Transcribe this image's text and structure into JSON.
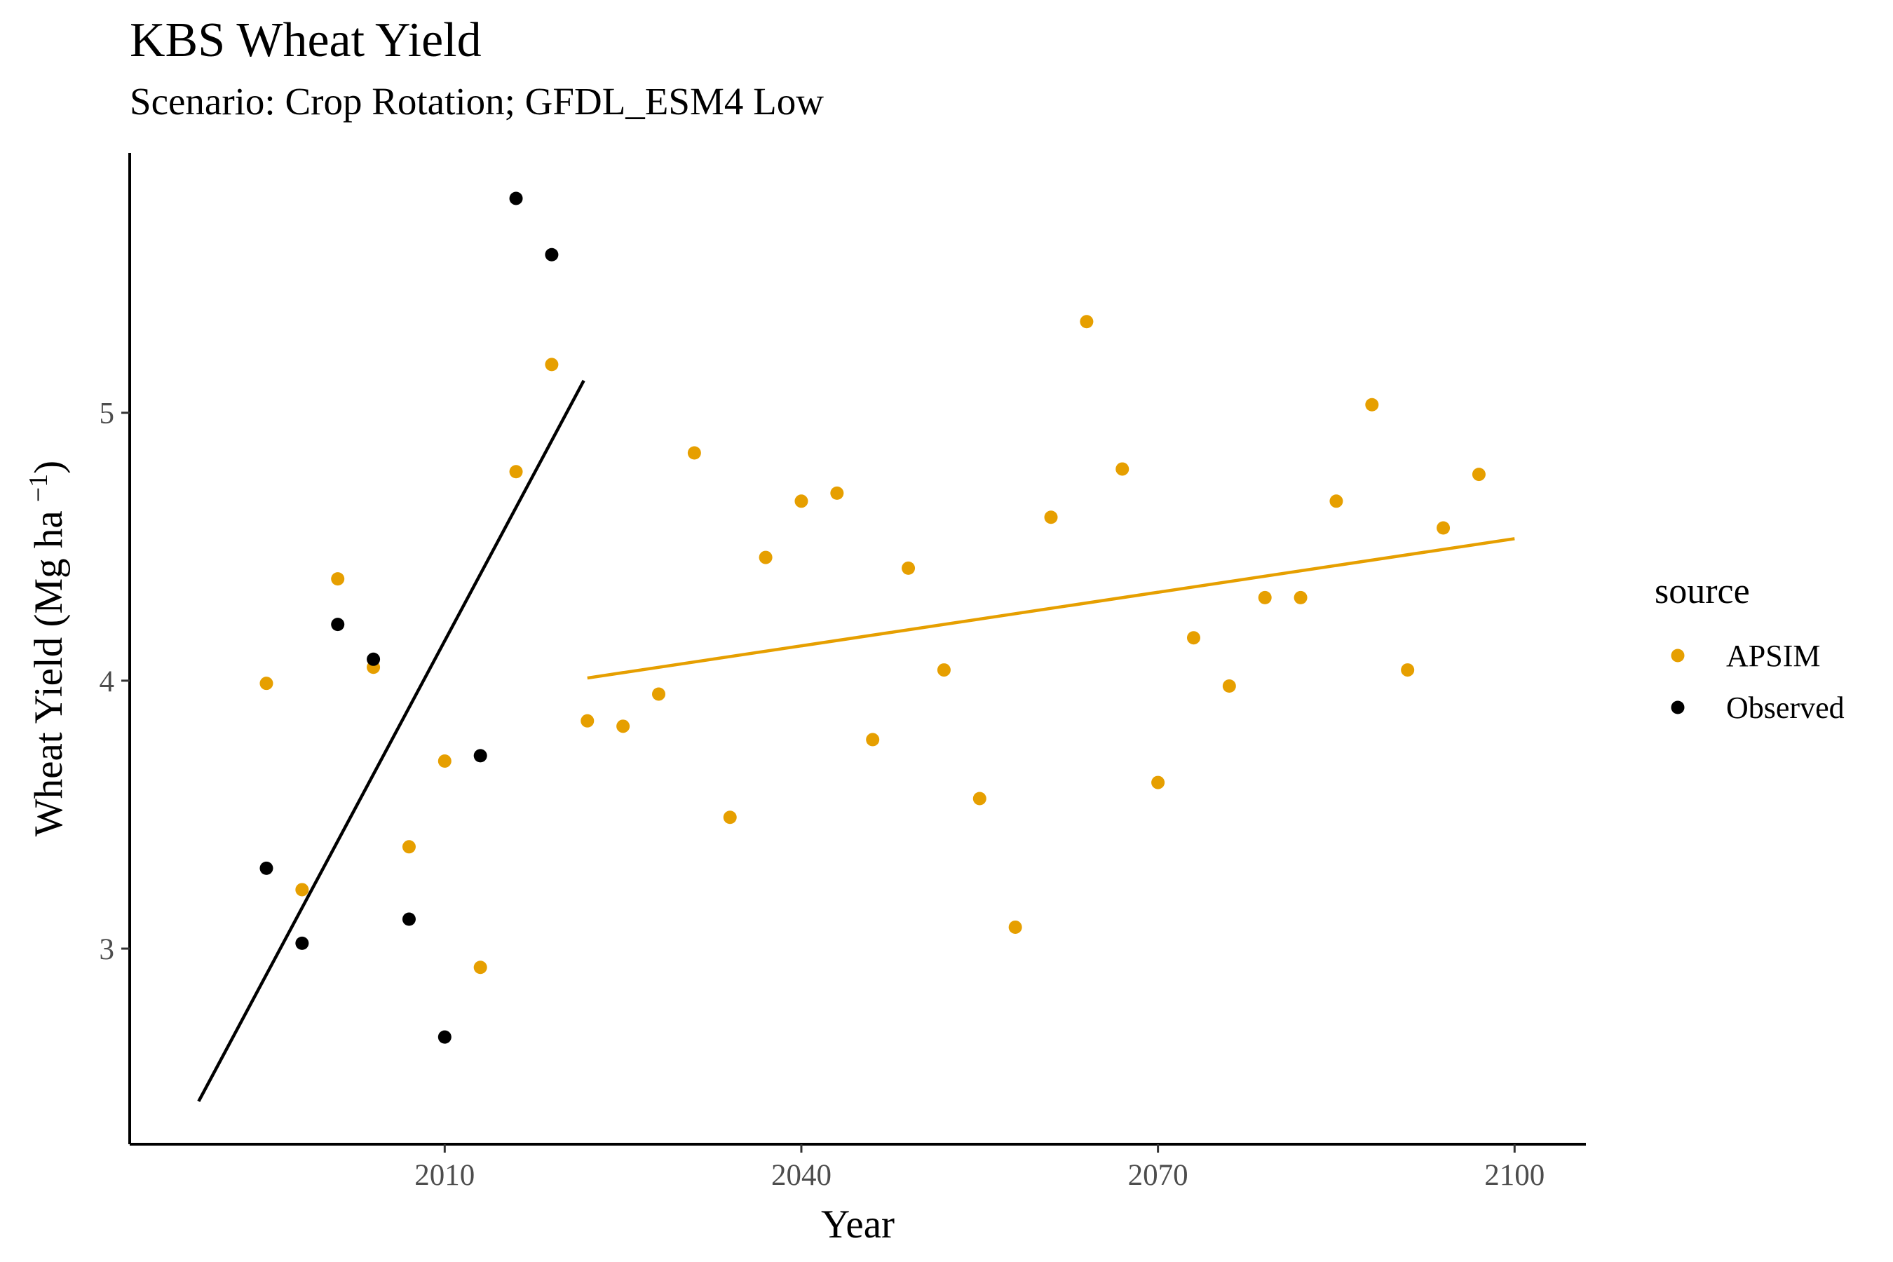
{
  "chart_data": {
    "type": "scatter",
    "title": "KBS Wheat Yield",
    "subtitle": "Scenario: Crop Rotation; GFDL_ESM4 Low",
    "xlabel": "Year",
    "ylabel_parts": {
      "main": "Wheat Yield (Mg ha",
      "sup": "−1",
      "close": ")"
    },
    "xlim": [
      1983.5,
      2106
    ],
    "ylim": [
      2.27,
      5.97
    ],
    "xticks": [
      2010,
      2040,
      2070,
      2100
    ],
    "yticks": [
      3,
      4,
      5
    ],
    "grid": false,
    "legend": {
      "title": "source",
      "position": "right"
    },
    "series": [
      {
        "name": "APSIM",
        "color": "#E69F00",
        "points": [
          [
            1995,
            3.99
          ],
          [
            1998,
            3.22
          ],
          [
            2001,
            4.38
          ],
          [
            2004,
            4.05
          ],
          [
            2007,
            3.38
          ],
          [
            2010,
            3.7
          ],
          [
            2013,
            2.93
          ],
          [
            2016,
            4.78
          ],
          [
            2019,
            5.18
          ],
          [
            2022,
            3.85
          ],
          [
            2025,
            3.83
          ],
          [
            2028,
            3.95
          ],
          [
            2031,
            4.85
          ],
          [
            2034,
            3.49
          ],
          [
            2037,
            4.46
          ],
          [
            2040,
            4.67
          ],
          [
            2043,
            4.7
          ],
          [
            2046,
            3.78
          ],
          [
            2049,
            4.42
          ],
          [
            2052,
            4.04
          ],
          [
            2055,
            3.56
          ],
          [
            2058,
            3.08
          ],
          [
            2061,
            4.61
          ],
          [
            2064,
            5.34
          ],
          [
            2067,
            4.79
          ],
          [
            2070,
            3.62
          ],
          [
            2073,
            4.16
          ],
          [
            2076,
            3.98
          ],
          [
            2079,
            4.31
          ],
          [
            2082,
            4.31
          ],
          [
            2085,
            4.67
          ],
          [
            2088,
            5.03
          ],
          [
            2091,
            4.04
          ],
          [
            2094,
            4.57
          ],
          [
            2097,
            4.77
          ]
        ],
        "trend": {
          "x": [
            2022,
            2100
          ],
          "y": [
            4.01,
            4.53
          ]
        }
      },
      {
        "name": "Observed",
        "color": "#000000",
        "points": [
          [
            1995,
            3.3
          ],
          [
            1998,
            3.02
          ],
          [
            2001,
            4.21
          ],
          [
            2004,
            4.08
          ],
          [
            2007,
            3.11
          ],
          [
            2010,
            2.67
          ],
          [
            2013,
            3.72
          ],
          [
            2016,
            5.8
          ],
          [
            2019,
            5.59
          ]
        ],
        "trend": {
          "x": [
            1989.3,
            2021.7
          ],
          "y": [
            2.43,
            5.12
          ]
        }
      }
    ]
  }
}
